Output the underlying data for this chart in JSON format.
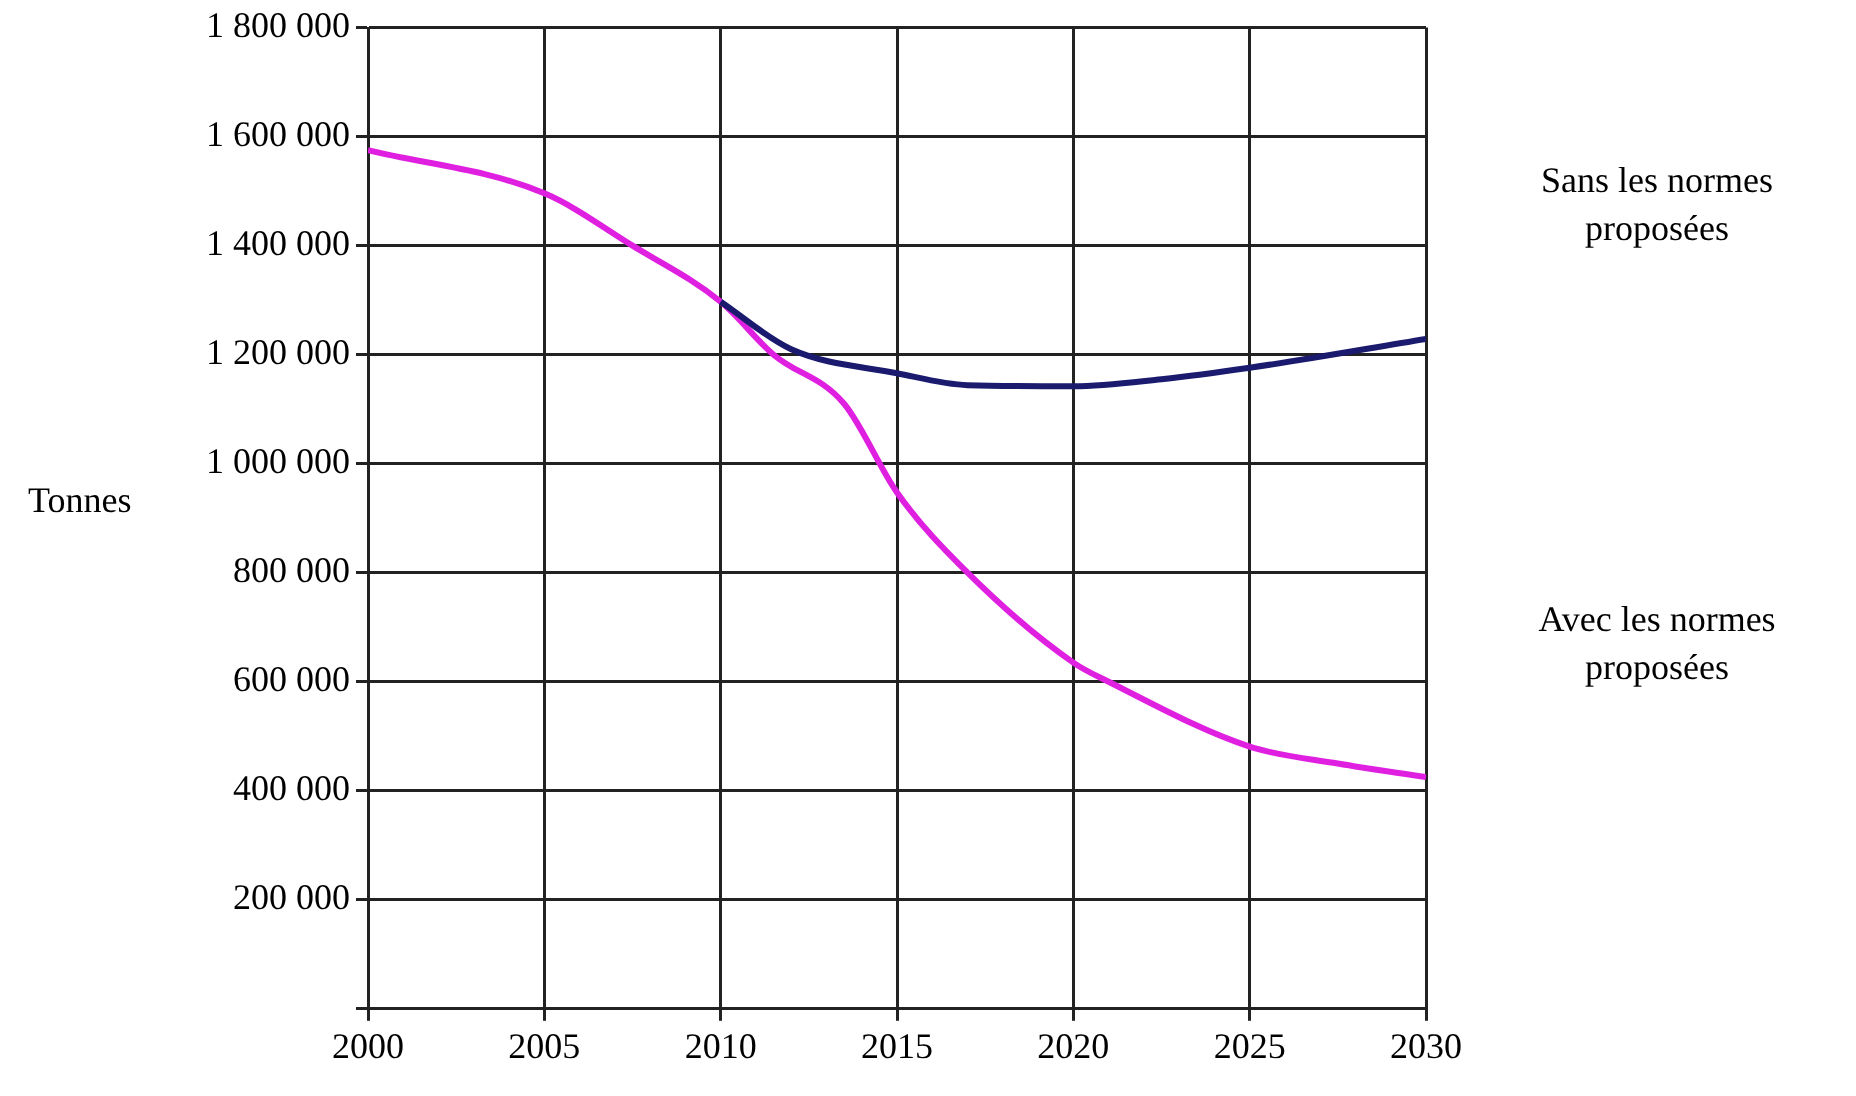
{
  "chart_data": {
    "type": "line",
    "ylabel": "Tonnes",
    "xlim": [
      2000,
      2030
    ],
    "xticks": [
      2000,
      2005,
      2010,
      2015,
      2020,
      2025,
      2030
    ],
    "ylim": [
      0,
      1800000
    ],
    "yticks": [
      {
        "value": 0,
        "label": null
      },
      {
        "value": 200000,
        "label": "200 000"
      },
      {
        "value": 400000,
        "label": "400 000"
      },
      {
        "value": 600000,
        "label": "600 000"
      },
      {
        "value": 800000,
        "label": "800 000"
      },
      {
        "value": 1000000,
        "label": "1 000 000"
      },
      {
        "value": 1200000,
        "label": "1 200 000"
      },
      {
        "value": 1400000,
        "label": "1 400 000"
      },
      {
        "value": 1600000,
        "label": "1 600 000"
      },
      {
        "value": 1800000,
        "label": "1 800 000"
      }
    ],
    "grid": true,
    "legend": false,
    "marker": "none",
    "line_style": "solid",
    "series": [
      {
        "name": "Sans les normes proposées",
        "color": "#1a1a6e",
        "x": [
          2010,
          2012,
          2015,
          2017,
          2020,
          2022.5,
          2025,
          2030
        ],
        "values": [
          1297000,
          1210000,
          1166000,
          1144000,
          1142000,
          1155000,
          1176000,
          1229000
        ]
      },
      {
        "name": "Avec les normes proposées",
        "color": "#e020e0",
        "x": [
          2000,
          2005,
          2007.5,
          2010,
          2011.5,
          2013.5,
          2015,
          2017,
          2020,
          2021,
          2025,
          2027.5,
          2030
        ],
        "values": [
          1575000,
          1496000,
          1400000,
          1297000,
          1200000,
          1110000,
          947000,
          800000,
          635000,
          600000,
          481000,
          450000,
          425000
        ]
      }
    ]
  }
}
